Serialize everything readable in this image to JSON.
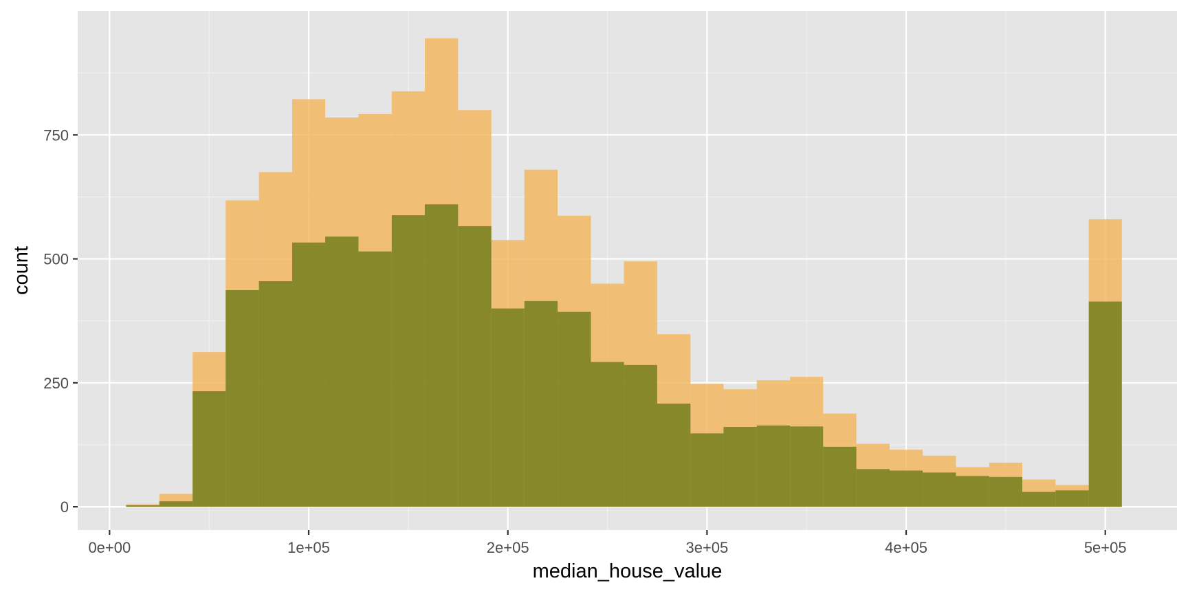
{
  "chart_data": {
    "type": "histogram",
    "xlabel": "median_house_value",
    "ylabel": "count",
    "xlim": [
      -16000,
      536000
    ],
    "ylim": [
      -47,
      1000
    ],
    "x_ticks": [
      {
        "value": 0,
        "label": "0e+00"
      },
      {
        "value": 100000,
        "label": "1e+05"
      },
      {
        "value": 200000,
        "label": "2e+05"
      },
      {
        "value": 300000,
        "label": "3e+05"
      },
      {
        "value": 400000,
        "label": "4e+05"
      },
      {
        "value": 500000,
        "label": "5e+05"
      }
    ],
    "y_ticks": [
      {
        "value": 0,
        "label": "0"
      },
      {
        "value": 250,
        "label": "250"
      },
      {
        "value": 500,
        "label": "500"
      },
      {
        "value": 750,
        "label": "750"
      }
    ],
    "bins": [
      8300,
      25000,
      41700,
      58300,
      75000,
      91700,
      108300,
      125000,
      141700,
      158300,
      175000,
      191700,
      208300,
      225000,
      241700,
      258300,
      275000,
      291700,
      308300,
      325000,
      341700,
      358300,
      375000,
      391700,
      408300,
      425000,
      441700,
      458300,
      475000,
      491700,
      508300
    ],
    "series": [
      {
        "color": "#f4b45a",
        "opacity": 0.8,
        "values": [
          5,
          26,
          312,
          618,
          675,
          822,
          785,
          792,
          838,
          945,
          800,
          538,
          680,
          587,
          450,
          495,
          348,
          248,
          237,
          255,
          262,
          188,
          127,
          115,
          103,
          80,
          89,
          55,
          44,
          580
        ]
      },
      {
        "color": "#6b7a18",
        "opacity": 0.8,
        "values": [
          3,
          11,
          233,
          437,
          455,
          533,
          545,
          515,
          588,
          610,
          566,
          400,
          415,
          393,
          292,
          286,
          208,
          148,
          161,
          164,
          162,
          121,
          76,
          73,
          69,
          62,
          60,
          30,
          33,
          414
        ]
      }
    ]
  }
}
